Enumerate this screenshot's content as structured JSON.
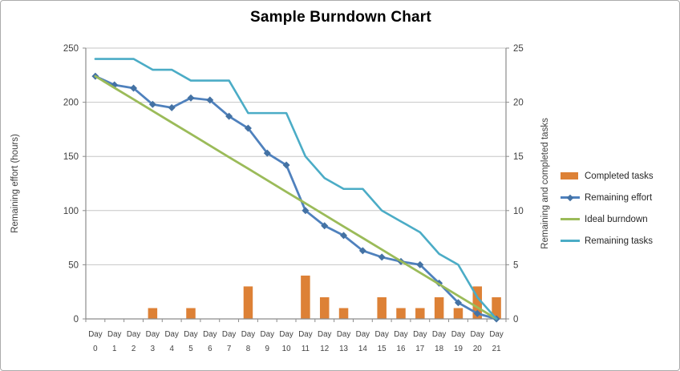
{
  "window": {
    "background": "#ffffff",
    "border_color": "#ababab"
  },
  "chart_data": {
    "type": "combo",
    "title": "Sample Burndown Chart",
    "categories": [
      "Day 0",
      "Day 1",
      "Day 2",
      "Day 3",
      "Day 4",
      "Day 5",
      "Day 6",
      "Day 7",
      "Day 8",
      "Day 9",
      "Day 10",
      "Day 11",
      "Day 12",
      "Day 13",
      "Day 14",
      "Day 15",
      "Day 16",
      "Day 17",
      "Day 18",
      "Day 19",
      "Day 20",
      "Day 21"
    ],
    "series": [
      {
        "name": "Completed tasks",
        "type": "bar",
        "axis": "right",
        "color": "#dd8136",
        "values": [
          0,
          0,
          0,
          1,
          0,
          1,
          0,
          0,
          3,
          0,
          0,
          4,
          2,
          1,
          0,
          2,
          1,
          1,
          2,
          1,
          3,
          2
        ]
      },
      {
        "name": "Remaining effort",
        "type": "line",
        "marker": "diamond",
        "axis": "left",
        "color": "#4f81bd",
        "marker_color": "#4472a4",
        "values": [
          224,
          216,
          213,
          198,
          195,
          204,
          202,
          187,
          176,
          153,
          142,
          100,
          86,
          77,
          63,
          57,
          53,
          50,
          33,
          15,
          5,
          0
        ]
      },
      {
        "name": "Ideal burndown",
        "type": "line",
        "axis": "left",
        "color": "#9bbb59",
        "values": [
          224,
          213.3,
          202.7,
          192,
          181.3,
          170.7,
          160,
          149.3,
          138.7,
          128,
          117.3,
          106.7,
          96,
          85.3,
          74.7,
          64,
          53.3,
          42.7,
          32,
          21.3,
          10.7,
          0
        ]
      },
      {
        "name": "Remaining tasks",
        "type": "line",
        "axis": "right",
        "color": "#4bacc6",
        "values": [
          24,
          24,
          24,
          23,
          23,
          22,
          22,
          22,
          19,
          19,
          19,
          15,
          13,
          12,
          12,
          10,
          9,
          8,
          6,
          5,
          2,
          0
        ]
      }
    ],
    "axes": {
      "left": {
        "title": "Remaining effort (hours)",
        "min": 0,
        "max": 250,
        "tick_step": 50,
        "tick_labels": [
          "0",
          "50",
          "100",
          "150",
          "200",
          "250"
        ]
      },
      "right": {
        "title": "Remaining and completed tasks",
        "min": 0,
        "max": 25,
        "tick_step": 5,
        "tick_labels": [
          "0",
          "5",
          "10",
          "15",
          "20",
          "25"
        ]
      }
    },
    "grid": true,
    "legend": {
      "position": "right",
      "entries": [
        "Completed tasks",
        "Remaining effort",
        "Ideal burndown",
        "Remaining tasks"
      ]
    },
    "style": {
      "gridline_color": "#c6c6c6",
      "axis_line_color": "#8c8c8c",
      "tick_label_color": "#3f3f3f"
    }
  }
}
